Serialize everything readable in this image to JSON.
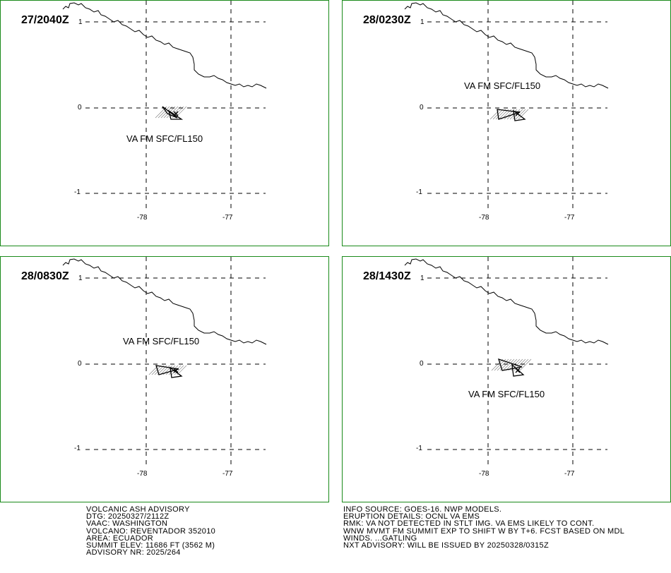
{
  "panels": [
    {
      "time": "27/2040Z",
      "sup": "1",
      "label": "VA FM SFC/FL150",
      "lat_labels": [
        "0",
        "-1"
      ],
      "lon_labels": [
        "-78",
        "-77"
      ]
    },
    {
      "time": "28/0230Z",
      "sup": "1",
      "label": "VA FM SFC/FL150",
      "lat_labels": [
        "0",
        "-1"
      ],
      "lon_labels": [
        "-78",
        "-77"
      ]
    },
    {
      "time": "28/0830Z",
      "sup": "1",
      "label": "VA FM SFC/FL150",
      "lat_labels": [
        "0",
        "-1"
      ],
      "lon_labels": [
        "-78",
        "-77"
      ]
    },
    {
      "time": "28/1430Z",
      "sup": "1",
      "label": "VA FM SFC/FL150",
      "lat_labels": [
        "0",
        "-1"
      ],
      "lon_labels": [
        "-78",
        "-77"
      ]
    }
  ],
  "advisory_left": [
    "VOLCANIC ASH ADVISORY",
    "DTG: 20250327/2112Z",
    "VAAC: WASHINGTON",
    "VOLCANO: REVENTADOR 352010",
    "AREA: ECUADOR",
    "SUMMIT ELEV: 11686 FT (3562 M)",
    "ADVISORY NR: 2025/264"
  ],
  "advisory_right": [
    "INFO SOURCE: GOES-16. NWP MODELS.",
    "ERUPTION DETAILS: OCNL VA EMS",
    "RMK: VA NOT DETECTED IN STLT IMG. VA EMS LIKELY TO CONT.",
    "WNW MVMT FM SUMMIT EXP TO SHIFT W BY T+6. FCST BASED ON MDL",
    "WINDS. ...GATLING",
    "NXT ADVISORY: WILL BE ISSUED BY 20250328/0315Z"
  ],
  "colors": {
    "frame": "#1a8a1a",
    "ink": "#000000"
  }
}
